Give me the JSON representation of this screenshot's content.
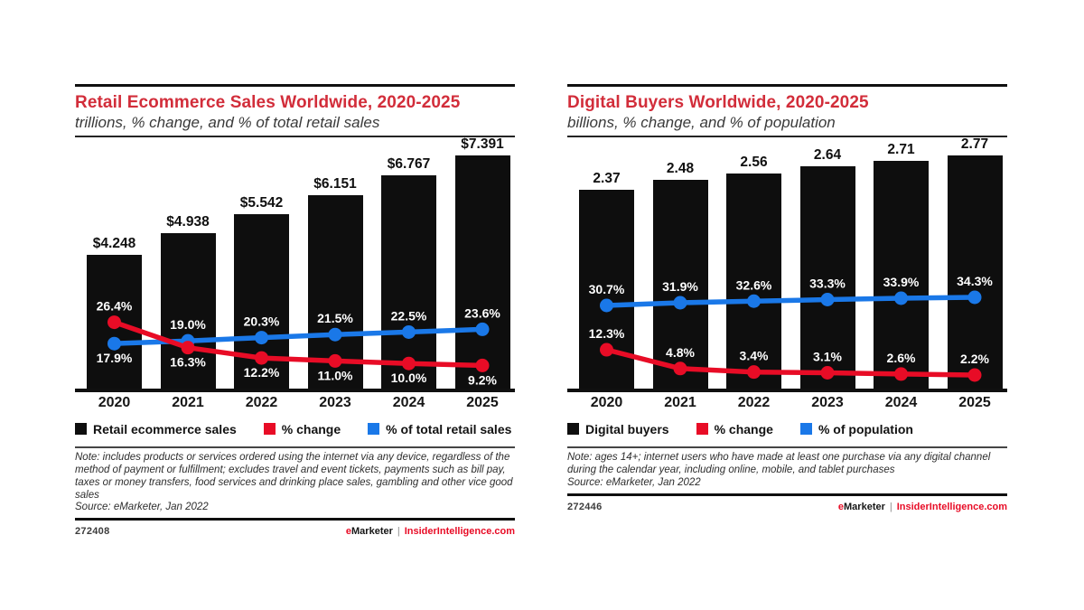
{
  "colors": {
    "accent_red": "#d22d3a",
    "series_red": "#e80c26",
    "series_blue": "#1a78e8",
    "bar_black": "#0e0e0e"
  },
  "chart_data": [
    {
      "type": "bar+line",
      "title": "Retail Ecommerce Sales Worldwide, 2020-2025",
      "subtitle": "trillions, % change, and % of total retail sales",
      "categories": [
        "2020",
        "2021",
        "2022",
        "2023",
        "2024",
        "2025"
      ],
      "bars": {
        "name": "Retail ecommerce sales",
        "unit": "trillions",
        "values": [
          4.248,
          4.938,
          5.542,
          6.151,
          6.767,
          7.391
        ],
        "labels": [
          "$4.248",
          "$4.938",
          "$5.542",
          "$6.151",
          "$6.767",
          "$7.391"
        ]
      },
      "series": [
        {
          "name": "% change",
          "color": "#e80c26",
          "values": [
            26.4,
            16.3,
            12.2,
            11.0,
            10.0,
            9.2
          ],
          "labels": [
            "26.4%",
            "16.3%",
            "12.2%",
            "11.0%",
            "10.0%",
            "9.2%"
          ],
          "label_side": [
            "above",
            "below",
            "below",
            "below",
            "below",
            "below"
          ]
        },
        {
          "name": "% of total retail sales",
          "color": "#1a78e8",
          "values": [
            17.9,
            19.0,
            20.3,
            21.5,
            22.5,
            23.6
          ],
          "labels": [
            "17.9%",
            "19.0%",
            "20.3%",
            "21.5%",
            "22.5%",
            "23.6%"
          ],
          "label_side": [
            "below",
            "above",
            "above",
            "above",
            "above",
            "above"
          ]
        }
      ],
      "legend": [
        {
          "label": "Retail ecommerce sales",
          "color": "#0e0e0e"
        },
        {
          "label": "% change",
          "color": "#e80c26"
        },
        {
          "label": "% of total retail sales",
          "color": "#1a78e8"
        }
      ]
    },
    {
      "type": "bar+line",
      "title": "Digital Buyers Worldwide, 2020-2025",
      "subtitle": "billions, % change, and % of population",
      "categories": [
        "2020",
        "2021",
        "2022",
        "2023",
        "2024",
        "2025"
      ],
      "bars": {
        "name": "Digital buyers",
        "unit": "billions",
        "values": [
          2.37,
          2.48,
          2.56,
          2.64,
          2.71,
          2.77
        ],
        "labels": [
          "2.37",
          "2.48",
          "2.56",
          "2.64",
          "2.71",
          "2.77"
        ]
      },
      "series": [
        {
          "name": "% change",
          "color": "#e80c26",
          "values": [
            12.3,
            4.8,
            3.4,
            3.1,
            2.6,
            2.2
          ],
          "labels": [
            "12.3%",
            "4.8%",
            "3.4%",
            "3.1%",
            "2.6%",
            "2.2%"
          ],
          "label_side": [
            "above",
            "above",
            "above",
            "above",
            "above",
            "above"
          ]
        },
        {
          "name": "% of population",
          "color": "#1a78e8",
          "values": [
            30.7,
            31.9,
            32.6,
            33.3,
            33.9,
            34.3
          ],
          "labels": [
            "30.7%",
            "31.9%",
            "32.6%",
            "33.3%",
            "33.9%",
            "34.3%"
          ],
          "label_side": [
            "above",
            "above",
            "above",
            "above",
            "above",
            "above"
          ]
        }
      ],
      "legend": [
        {
          "label": "Digital buyers",
          "color": "#0e0e0e"
        },
        {
          "label": "% change",
          "color": "#e80c26"
        },
        {
          "label": "% of population",
          "color": "#1a78e8"
        }
      ]
    }
  ],
  "panels": [
    {
      "note": "Note: includes products or services ordered using the internet via any device, regardless of the method of payment or fulfillment; excludes travel and event tickets, payments such as bill pay, taxes or money transfers, food services and drinking place sales, gambling and other vice good sales",
      "source": "Source: eMarketer, Jan 2022",
      "chart_id": "272408",
      "brand": {
        "e": "e",
        "rest": "Marketer",
        "divider": "|",
        "site": "InsiderIntelligence.com"
      }
    },
    {
      "note": "Note: ages 14+; internet users who have made at least one purchase via any digital channel during the calendar year, including online, mobile, and tablet purchases",
      "source": "Source: eMarketer, Jan 2022",
      "chart_id": "272446",
      "brand": {
        "e": "e",
        "rest": "Marketer",
        "divider": "|",
        "site": "InsiderIntelligence.com"
      }
    }
  ]
}
